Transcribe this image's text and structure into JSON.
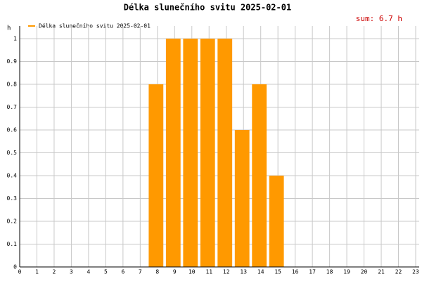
{
  "chart_data": {
    "type": "bar",
    "title": "Délka slunečního svitu 2025-02-01",
    "y_unit": "h",
    "annotation": "sum: 6.7 h",
    "x": [
      0,
      1,
      2,
      3,
      4,
      5,
      6,
      7,
      8,
      9,
      10,
      11,
      12,
      13,
      14,
      15,
      16,
      17,
      18,
      19,
      20,
      21,
      22,
      23
    ],
    "series": [
      {
        "name": "Délka slunečního svitu 2025-02-01",
        "color": "#ff9900",
        "values": [
          0,
          0,
          0,
          0,
          0,
          0,
          0,
          0,
          0.8,
          1,
          1,
          1,
          1,
          0.6,
          0.8,
          0.4,
          0,
          0,
          0,
          0,
          0,
          0,
          0,
          0
        ]
      }
    ],
    "xlim": [
      0,
      23
    ],
    "xticks": [
      0,
      1,
      2,
      3,
      4,
      5,
      6,
      7,
      8,
      9,
      10,
      11,
      12,
      13,
      14,
      15,
      16,
      17,
      18,
      19,
      20,
      21,
      22,
      23
    ],
    "ylim": [
      0,
      1
    ],
    "yticks": [
      0,
      0.1,
      0.2,
      0.3,
      0.4,
      0.5,
      0.6,
      0.7,
      0.8,
      0.9,
      1
    ],
    "grid": true
  }
}
